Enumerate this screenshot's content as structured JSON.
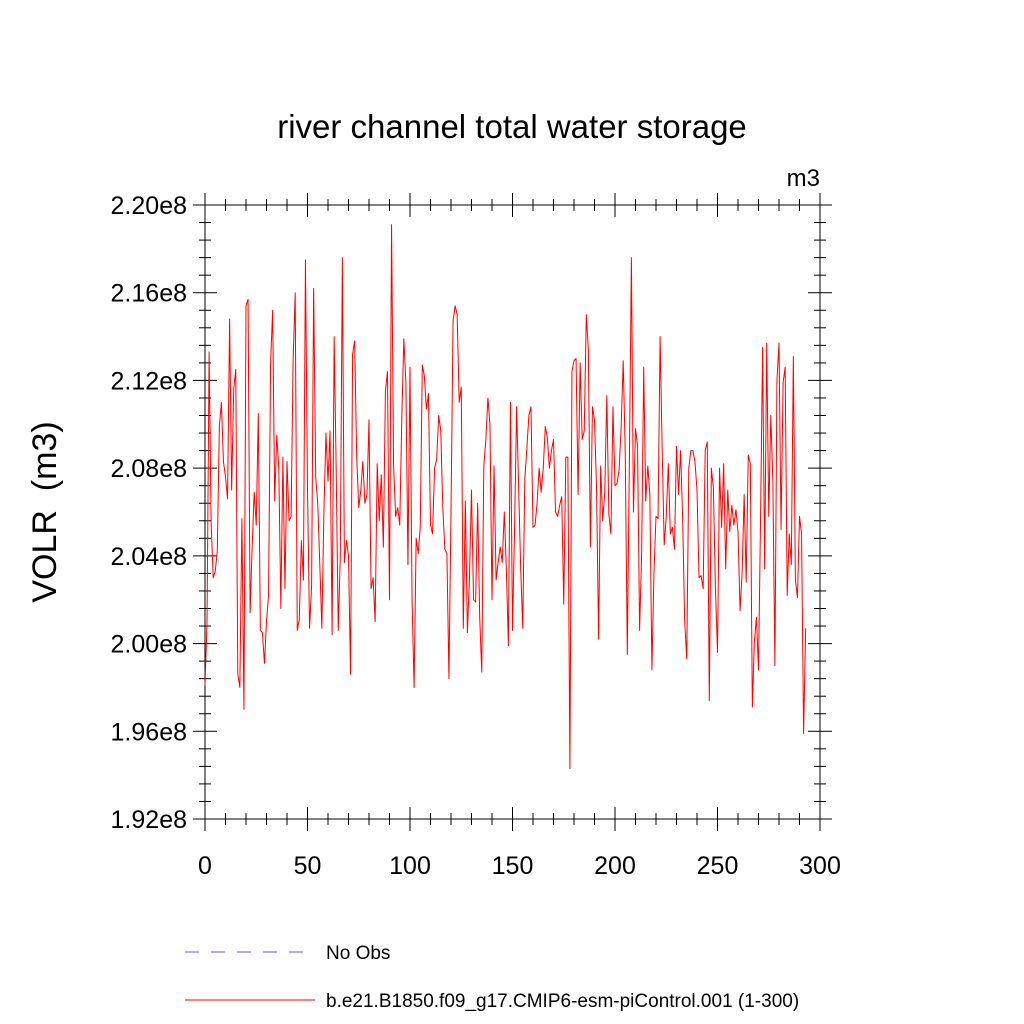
{
  "chart_data": {
    "type": "line",
    "title": "river channel total water storage",
    "units_label": "m3",
    "ylabel": "VOLR  (m3)",
    "xlabel": "",
    "xlim": [
      0,
      300
    ],
    "ylim": [
      192000000.0,
      220000000.0
    ],
    "x_ticks": [
      0,
      50,
      100,
      150,
      200,
      250,
      300
    ],
    "x_tick_labels": [
      "0",
      "50",
      "100",
      "150",
      "200",
      "250",
      "300"
    ],
    "y_ticks": [
      192000000.0,
      196000000.0,
      200000000.0,
      204000000.0,
      208000000.0,
      212000000.0,
      216000000.0,
      220000000.0
    ],
    "y_tick_labels": [
      "1.92e8",
      "1.96e8",
      "2.00e8",
      "2.04e8",
      "2.08e8",
      "2.12e8",
      "2.16e8",
      "2.20e8"
    ],
    "grid": false,
    "legend_position": "bottom",
    "series": [
      {
        "name": "No Obs",
        "color": "#6a5acd",
        "style": "dashed",
        "values": []
      },
      {
        "name": "b.e21.B1850.f09_g17.CMIP6-esm-piControl.001 (1-300)",
        "color": "#ff0000",
        "style": "solid",
        "x_start": 0,
        "x_step": 1,
        "values": [
          198100000.0,
          201000000.0,
          213300000.0,
          205500000.0,
          203000000.0,
          203300000.0,
          204200000.0,
          209900000.0,
          211000000.0,
          208300000.0,
          207600000.0,
          206600000.0,
          214800000.0,
          207000000.0,
          211600000.0,
          212500000.0,
          198600000.0,
          198000000.0,
          205700000.0,
          197000000.0,
          215400000.0,
          215700000.0,
          201400000.0,
          204400000.0,
          206900000.0,
          205400000.0,
          210500000.0,
          200600000.0,
          200500000.0,
          199100000.0,
          201000000.0,
          202200000.0,
          212800000.0,
          215200000.0,
          206500000.0,
          209500000.0,
          208000000.0,
          201600000.0,
          208500000.0,
          202500000.0,
          208300000.0,
          205600000.0,
          205800000.0,
          213000000.0,
          216000000.0,
          200600000.0,
          201100000.0,
          204700000.0,
          202900000.0,
          217500000.0,
          207100000.0,
          200700000.0,
          202600000.0,
          216200000.0,
          207600000.0,
          206400000.0,
          203600000.0,
          200700000.0,
          206000000.0,
          209600000.0,
          207400000.0,
          209700000.0,
          200400000.0,
          214000000.0,
          207900000.0,
          200600000.0,
          204000000.0,
          217600000.0,
          203700000.0,
          204700000.0,
          204000000.0,
          198600000.0,
          213200000.0,
          213800000.0,
          208500000.0,
          206200000.0,
          207000000.0,
          208300000.0,
          206400000.0,
          206800000.0,
          210200000.0,
          202500000.0,
          203000000.0,
          201000000.0,
          208200000.0,
          205600000.0,
          207700000.0,
          204400000.0,
          211500000.0,
          212400000.0,
          202000000.0,
          219100000.0,
          208100000.0,
          205800000.0,
          206200000.0,
          205400000.0,
          210300000.0,
          213900000.0,
          211900000.0,
          203600000.0,
          212600000.0,
          202000000.0,
          198000000.0,
          204800000.0,
          204100000.0,
          205300000.0,
          212700000.0,
          212200000.0,
          210700000.0,
          211400000.0,
          205400000.0,
          205000000.0,
          208000000.0,
          208400000.0,
          210400000.0,
          209700000.0,
          206200000.0,
          204300000.0,
          204100000.0,
          198400000.0,
          206000000.0,
          214700000.0,
          215400000.0,
          215000000.0,
          211000000.0,
          211700000.0,
          200700000.0,
          206500000.0,
          200500000.0,
          203000000.0,
          207000000.0,
          202000000.0,
          201900000.0,
          206400000.0,
          201200000.0,
          198700000.0,
          208100000.0,
          209300000.0,
          211200000.0,
          210000000.0,
          202000000.0,
          208100000.0,
          202900000.0,
          203700000.0,
          204400000.0,
          203700000.0,
          206000000.0,
          203400000.0,
          199900000.0,
          211000000.0,
          200600000.0,
          205200000.0,
          210800000.0,
          207100000.0,
          203400000.0,
          200700000.0,
          207500000.0,
          208900000.0,
          210400000.0,
          210800000.0,
          205300000.0,
          205400000.0,
          206400000.0,
          208000000.0,
          206900000.0,
          208000000.0,
          209900000.0,
          209400000.0,
          208000000.0,
          208800000.0,
          209300000.0,
          206000000.0,
          205800000.0,
          206300000.0,
          206700000.0,
          201800000.0,
          208500000.0,
          208500000.0,
          194300000.0,
          212400000.0,
          212900000.0,
          213000000.0,
          206800000.0,
          212800000.0,
          209300000.0,
          209700000.0,
          215000000.0,
          213400000.0,
          204400000.0,
          210800000.0,
          210200000.0,
          207100000.0,
          200200000.0,
          208100000.0,
          205600000.0,
          206900000.0,
          211300000.0,
          205900000.0,
          205000000.0,
          210800000.0,
          207200000.0,
          207300000.0,
          207900000.0,
          209900000.0,
          212900000.0,
          208700000.0,
          199500000.0,
          208200000.0,
          217600000.0,
          206000000.0,
          209800000.0,
          209000000.0,
          200600000.0,
          204100000.0,
          212600000.0,
          206500000.0,
          208100000.0,
          206800000.0,
          198800000.0,
          203200000.0,
          205800000.0,
          205700000.0,
          214000000.0,
          208900000.0,
          204500000.0,
          205800000.0,
          208200000.0,
          205000000.0,
          205300000.0,
          204300000.0,
          209000000.0,
          206800000.0,
          208800000.0,
          205700000.0,
          201000000.0,
          199300000.0,
          208000000.0,
          208800000.0,
          208800000.0,
          208300000.0,
          207000000.0,
          203000000.0,
          203100000.0,
          202500000.0,
          208800000.0,
          209200000.0,
          197400000.0,
          208000000.0,
          207100000.0,
          202500000.0,
          199600000.0,
          208000000.0,
          205300000.0,
          208200000.0,
          203400000.0,
          207000000.0,
          205100000.0,
          206300000.0,
          205400000.0,
          206100000.0,
          205100000.0,
          201500000.0,
          203200000.0,
          206800000.0,
          202800000.0,
          208600000.0,
          208200000.0,
          197100000.0,
          200100000.0,
          201200000.0,
          198800000.0,
          205700000.0,
          213500000.0,
          203400000.0,
          213700000.0,
          205800000.0,
          210400000.0,
          207400000.0,
          199000000.0,
          212000000.0,
          213700000.0,
          205200000.0,
          211900000.0,
          212600000.0,
          202200000.0,
          205000000.0,
          203600000.0,
          213100000.0,
          202900000.0,
          202100000.0,
          205800000.0,
          205000000.0,
          195900000.0,
          200700000.0
        ]
      }
    ]
  }
}
